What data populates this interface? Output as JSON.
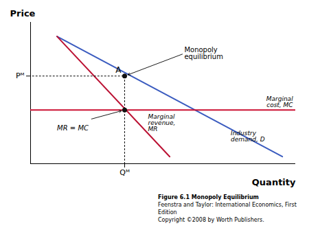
{
  "chart_data": {
    "type": "line",
    "title": "Figure 6.1  Monopoly Equilibrium",
    "subtitle": [
      "Feenstra and Taylor: International Economics, First Edition",
      "Copyright ©2008 by Worth Publishers."
    ],
    "xlabel": "Quantity",
    "ylabel": "Price",
    "xlim": [
      0,
      10
    ],
    "ylim": [
      0,
      10
    ],
    "xticks": [
      {
        "value": 3.55,
        "label": "Qᴹ"
      }
    ],
    "yticks": [
      {
        "value": 6.2,
        "label": "Pᴹ"
      }
    ],
    "grid": false,
    "series": [
      {
        "type": "line",
        "color": "#3a5bbf",
        "x": [
          1.0,
          9.5
        ],
        "values": [
          9.0,
          0.5
        ]
      },
      {
        "type": "line",
        "color": "#bb1133",
        "x": [
          1.0,
          5.25
        ],
        "values": [
          9.0,
          0.5
        ]
      },
      {
        "type": "line",
        "color": "#cc1133",
        "x": [
          0,
          10
        ],
        "values": [
          3.8,
          3.8
        ]
      },
      {
        "type": "line",
        "line_style": "dotted",
        "color": "#000000",
        "x": [
          3.55,
          3.55,
          0
        ],
        "values": [
          0,
          6.2,
          6.2
        ]
      },
      {
        "type": "scatter",
        "marker": "circle",
        "color": "#111111",
        "x": [
          3.55,
          3.55
        ],
        "values": [
          6.2,
          3.8
        ]
      }
    ],
    "annotations": [
      {
        "text": "A",
        "x": 3.55,
        "y": 6.2
      },
      {
        "text": "Monopoly\nequilibrium",
        "x": 5.8,
        "y": 7.8,
        "arrow_to": [
          3.55,
          6.2
        ]
      },
      {
        "text": "Marginal\ncost, MC",
        "x": 9.9,
        "y": 3.8
      },
      {
        "text": "Marginal\nrevenue,\nMR",
        "x": 3.55,
        "y": 3.8
      },
      {
        "text": "Industry\ndemand, D",
        "x": 7.5,
        "y": 2.5
      },
      {
        "text": "MR = MC",
        "x": 1.0,
        "y": 2.5,
        "arrow_to": [
          3.55,
          3.8
        ]
      }
    ]
  }
}
